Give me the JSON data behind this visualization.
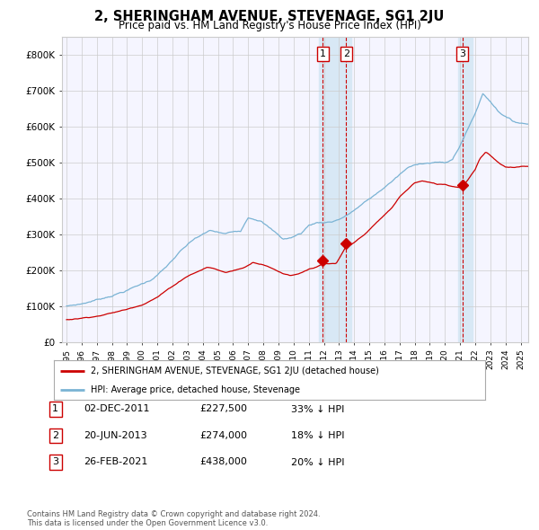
{
  "title": "2, SHERINGHAM AVENUE, STEVENAGE, SG1 2JU",
  "subtitle": "Price paid vs. HM Land Registry's House Price Index (HPI)",
  "legend_red": "2, SHERINGHAM AVENUE, STEVENAGE, SG1 2JU (detached house)",
  "legend_blue": "HPI: Average price, detached house, Stevenage",
  "footer": "Contains HM Land Registry data © Crown copyright and database right 2024.\nThis data is licensed under the Open Government Licence v3.0.",
  "transactions": [
    {
      "num": 1,
      "date": "02-DEC-2011",
      "price": "£227,500",
      "pct": "33%",
      "dir": "↓",
      "year": 2011.917
    },
    {
      "num": 2,
      "date": "20-JUN-2013",
      "price": "£274,000",
      "pct": "18%",
      "dir": "↓",
      "year": 2013.47
    },
    {
      "num": 3,
      "date": "26-FEB-2021",
      "price": "£438,000",
      "pct": "20%",
      "dir": "↓",
      "year": 2021.15
    }
  ],
  "hpi_color": "#7ab3d4",
  "price_color": "#cc0000",
  "bg_color": "#f5f5ff",
  "grid_color": "#cccccc",
  "highlight_color": "#d8e8f5",
  "vline_color": "#cc0000",
  "ylim": [
    0,
    850000
  ],
  "yticks": [
    0,
    100000,
    200000,
    300000,
    400000,
    500000,
    600000,
    700000,
    800000
  ],
  "ytick_labels": [
    "£0",
    "£100K",
    "£200K",
    "£300K",
    "£400K",
    "£500K",
    "£600K",
    "£700K",
    "£800K"
  ],
  "xmin": 1994.7,
  "xmax": 2025.5
}
